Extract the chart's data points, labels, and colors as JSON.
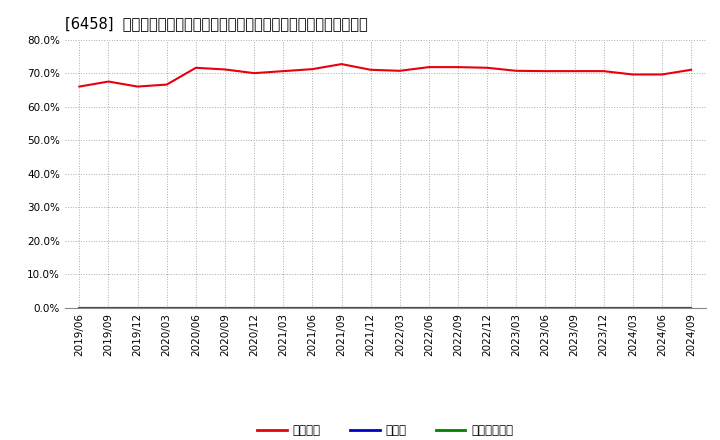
{
  "title": "[6458]  自己資本、のれん、繰延税金資産の総資産に対する比率の推移",
  "x_labels": [
    "2019/06",
    "2019/09",
    "2019/12",
    "2020/03",
    "2020/06",
    "2020/09",
    "2020/12",
    "2021/03",
    "2021/06",
    "2021/09",
    "2021/12",
    "2022/03",
    "2022/06",
    "2022/09",
    "2022/12",
    "2023/03",
    "2023/06",
    "2023/09",
    "2023/12",
    "2024/03",
    "2024/06",
    "2024/09"
  ],
  "equity_ratio": [
    0.66,
    0.675,
    0.66,
    0.666,
    0.716,
    0.711,
    0.7,
    0.706,
    0.712,
    0.727,
    0.71,
    0.707,
    0.718,
    0.718,
    0.716,
    0.707,
    0.706,
    0.706,
    0.706,
    0.696,
    0.696,
    0.71
  ],
  "goodwill_ratio": [
    0.0,
    0.0,
    0.0,
    0.0,
    0.0,
    0.0,
    0.0,
    0.0,
    0.0,
    0.0,
    0.0,
    0.0,
    0.0,
    0.0,
    0.0,
    0.0,
    0.0,
    0.0,
    0.0,
    0.0,
    0.0,
    0.0
  ],
  "deferred_tax_ratio": [
    0.0,
    0.0,
    0.0,
    0.0,
    0.0,
    0.0,
    0.0,
    0.0,
    0.0,
    0.0,
    0.0,
    0.0,
    0.0,
    0.0,
    0.0,
    0.0,
    0.0,
    0.0,
    0.0,
    0.0,
    0.0,
    0.0
  ],
  "equity_color": "#e8000d",
  "goodwill_color": "#0000cd",
  "deferred_tax_color": "#008000",
  "legend_equity": "自己資本",
  "legend_goodwill": "のれん",
  "legend_deferred": "繰延税金資産",
  "ylim": [
    0.0,
    0.8
  ],
  "yticks": [
    0.0,
    0.1,
    0.2,
    0.3,
    0.4,
    0.5,
    0.6,
    0.7,
    0.8
  ],
  "ytick_labels": [
    "0.0%",
    "10.0%",
    "20.0%",
    "30.0%",
    "40.0%",
    "50.0%",
    "60.0%",
    "70.0%",
    "80.0%"
  ],
  "background_color": "#ffffff",
  "plot_bg_color": "#ffffff",
  "grid_color": "#aaaaaa",
  "title_fontsize": 10.5,
  "tick_fontsize": 7.5,
  "legend_fontsize": 8.5
}
